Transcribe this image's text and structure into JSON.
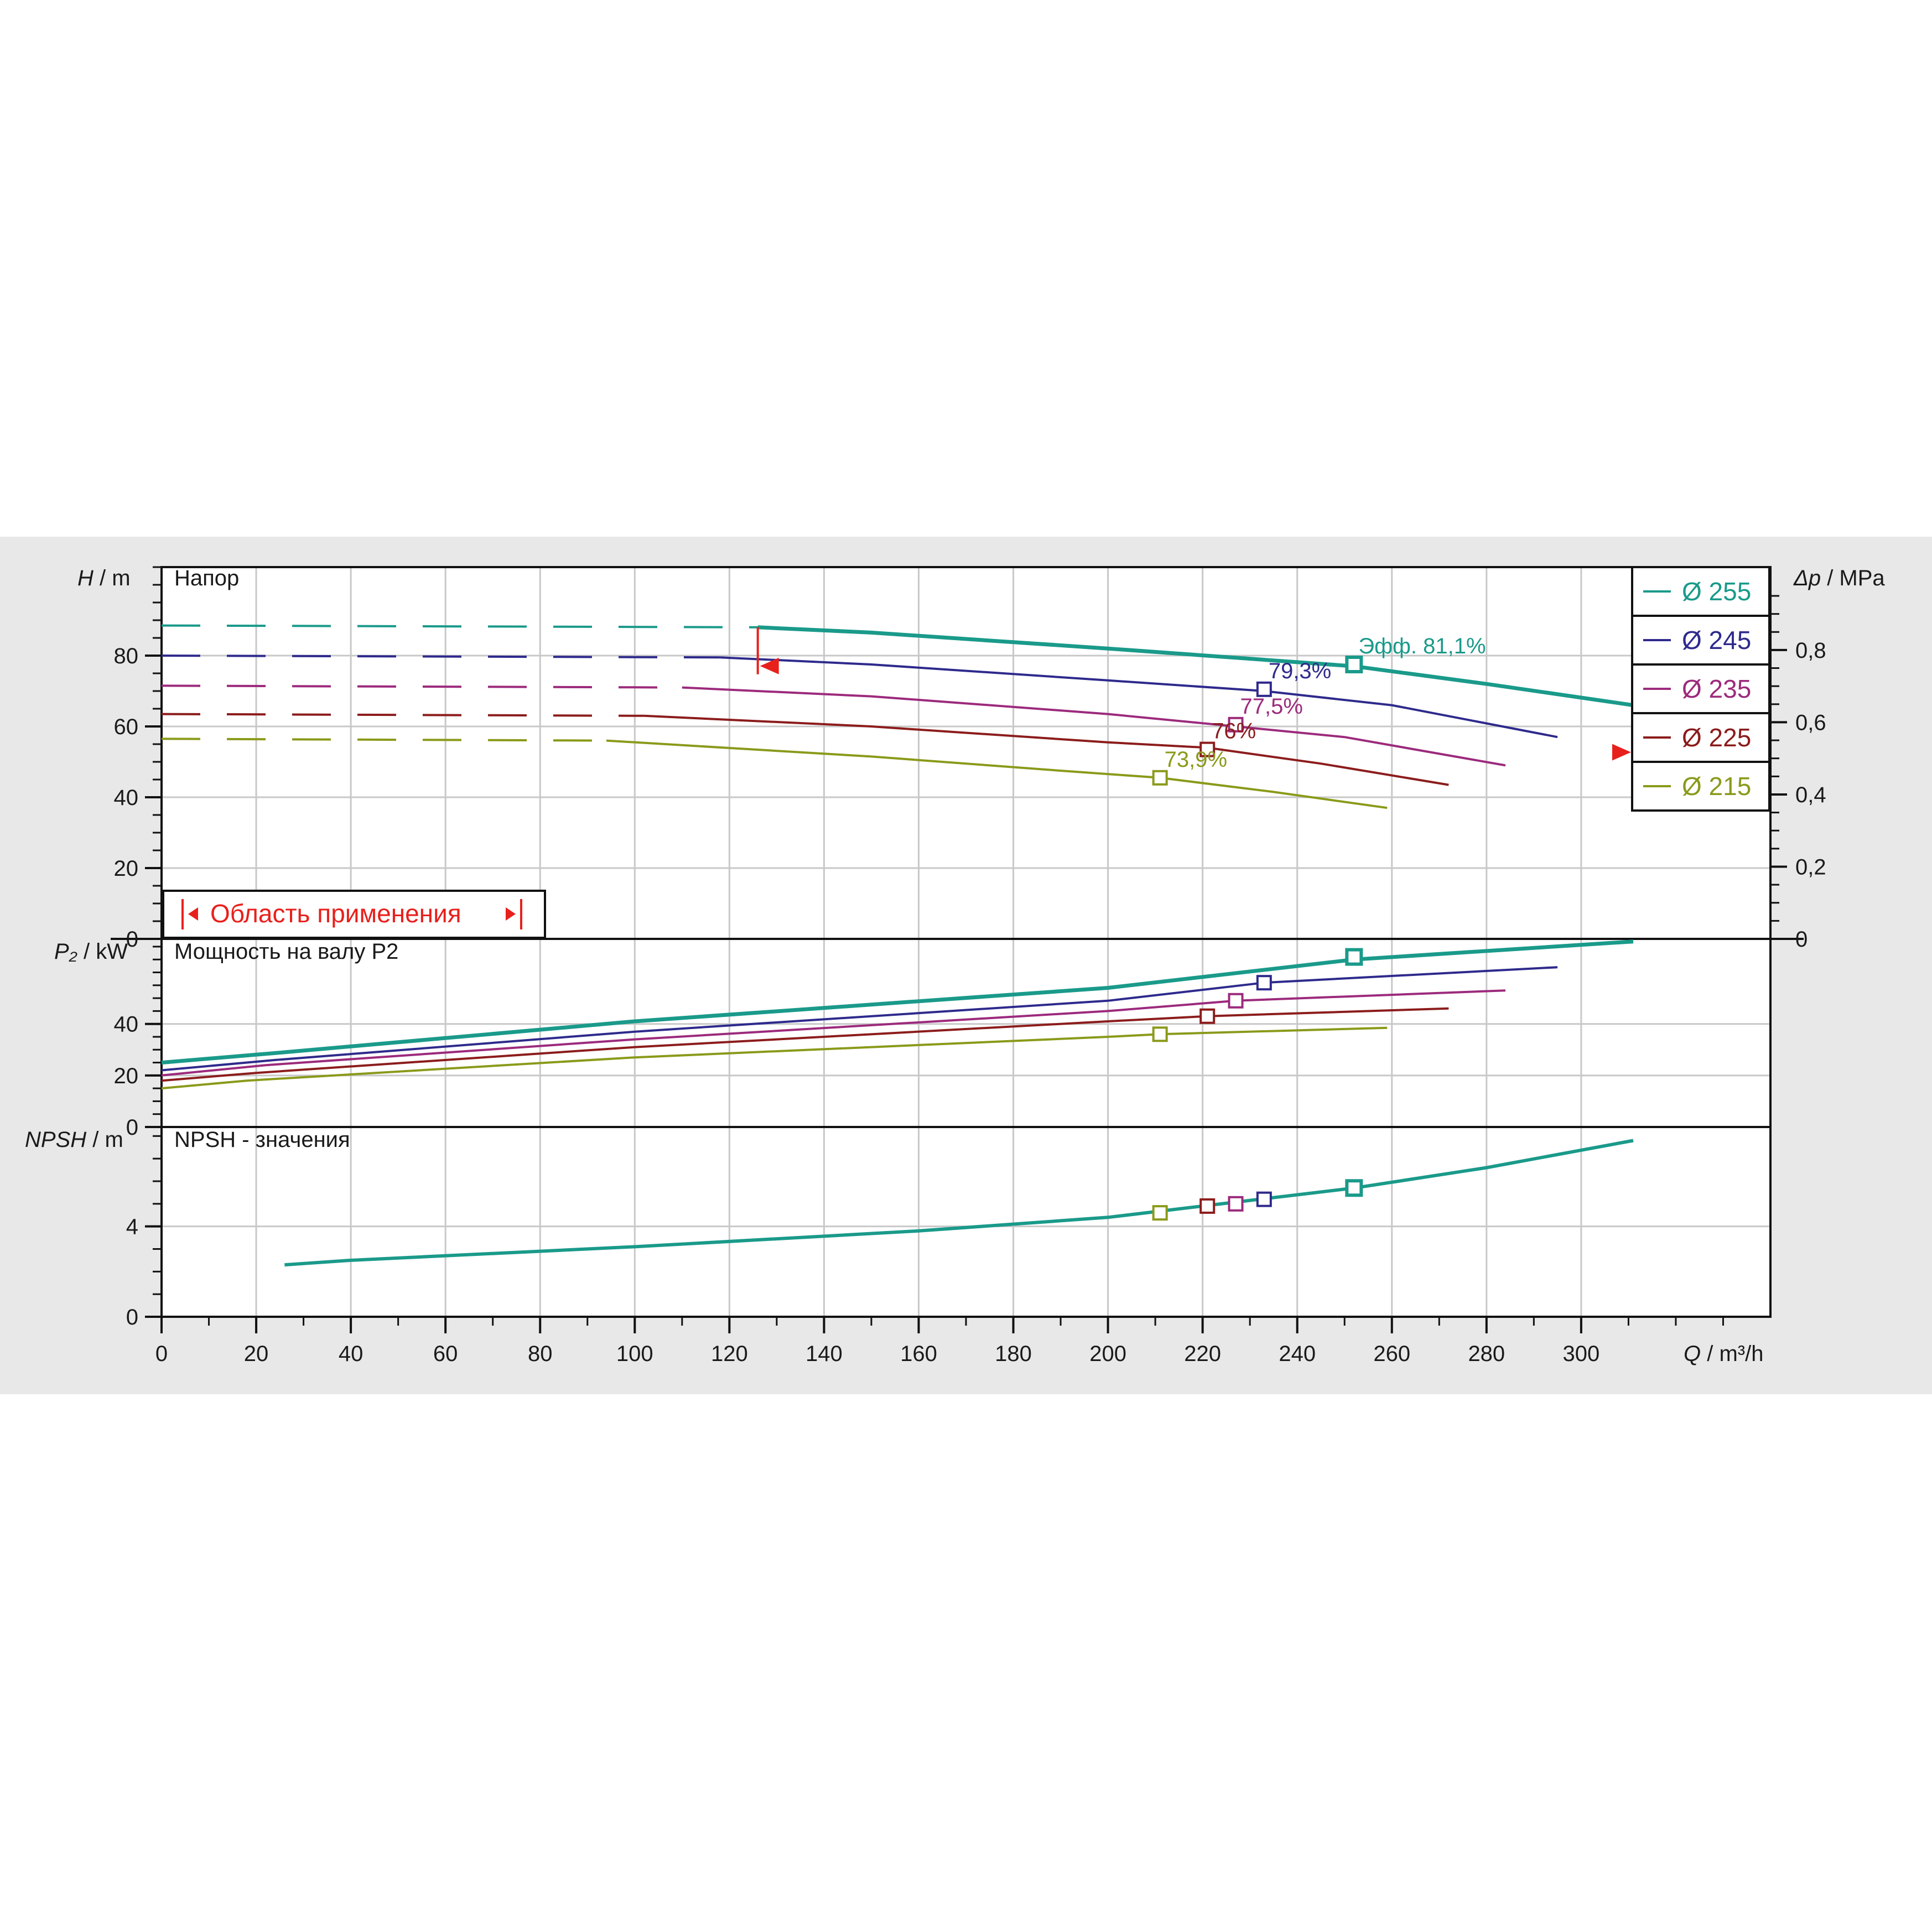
{
  "colors": {
    "d255": "#1a9a8a",
    "d245": "#2e2a8c",
    "d235": "#9c2a7c",
    "d225": "#8c1c1c",
    "d215": "#8a9a1a",
    "range": "#e8201c",
    "grid": "#c8c8c8",
    "axis": "#111111"
  },
  "head_panel": {
    "ylabel_var": "H",
    "ylabel_unit": " / m",
    "title": "Напор",
    "right_label_var": "Δp",
    "right_label_unit": " / MPa",
    "range_label": "Область применения"
  },
  "power_panel": {
    "ylabel_var": "P₂",
    "ylabel_unit": " / kW",
    "title": "Мощность на валу P2"
  },
  "npsh_panel": {
    "ylabel_var": "NPSH",
    "ylabel_unit": " / m",
    "title": "NPSH - значения"
  },
  "x_axis": {
    "label_var": "Q",
    "label_unit": " / m³/h",
    "ticks": [
      "0",
      "20",
      "40",
      "60",
      "80",
      "100",
      "120",
      "140",
      "160",
      "180",
      "200",
      "220",
      "240",
      "260",
      "280",
      "300"
    ]
  },
  "chart_data": [
    {
      "type": "line",
      "title": "Напор",
      "xlabel": "Q / m³/h",
      "ylabel": "H / m",
      "y2label": "Δp / MPa",
      "xlim": [
        0,
        340
      ],
      "ylim": [
        0,
        105
      ],
      "y_ticks": [
        "0",
        "20",
        "40",
        "60",
        "80"
      ],
      "y2_ticks": [
        "0",
        "0,2",
        "0,4",
        "0,6",
        "0,8"
      ],
      "legend": [
        "Ø 255",
        "Ø 245",
        "Ø 235",
        "Ø 225",
        "Ø 215"
      ],
      "legend_placement": "top-right",
      "series": [
        {
          "name": "Ø 255",
          "dashed_until": 126,
          "x": [
            0,
            126,
            150,
            200,
            252,
            280,
            311
          ],
          "y": [
            88.5,
            88,
            86.5,
            82,
            77,
            72,
            66
          ]
        },
        {
          "name": "Ø 245",
          "dashed_until": 118,
          "x": [
            0,
            118,
            150,
            200,
            233,
            260,
            295
          ],
          "y": [
            80,
            79.5,
            77.5,
            73,
            70,
            66,
            57
          ]
        },
        {
          "name": "Ø 235",
          "dashed_until": 110,
          "x": [
            0,
            110,
            150,
            200,
            227,
            250,
            284
          ],
          "y": [
            71.5,
            71,
            68.5,
            63.5,
            60,
            57,
            49
          ]
        },
        {
          "name": "Ø 225",
          "dashed_until": 102,
          "x": [
            0,
            102,
            150,
            200,
            221,
            245,
            272
          ],
          "y": [
            63.5,
            63,
            60,
            55.5,
            54,
            49.5,
            43.5
          ]
        },
        {
          "name": "Ø 215",
          "dashed_until": 94,
          "x": [
            0,
            94,
            150,
            190,
            211,
            235,
            259
          ],
          "y": [
            56.5,
            56,
            51.5,
            47.5,
            45.5,
            41.5,
            37
          ]
        }
      ],
      "bep_points": [
        {
          "series": "Ø 255",
          "x": 252,
          "y": 77.5,
          "label": "Эфф.  81,1%"
        },
        {
          "series": "Ø 245",
          "x": 233,
          "y": 70.5,
          "label": "79,3%"
        },
        {
          "series": "Ø 235",
          "x": 227,
          "y": 60.5,
          "label": "77,5%"
        },
        {
          "series": "Ø 225",
          "x": 221,
          "y": 53.5,
          "label": "76%"
        },
        {
          "series": "Ø 215",
          "x": 211,
          "y": 45.5,
          "label": "73,9%"
        }
      ],
      "application_range": {
        "q_min": 126,
        "q_max": 311
      }
    },
    {
      "type": "line",
      "title": "Мощность на валу P2",
      "xlabel": "Q / m³/h",
      "ylabel": "P₂ / kW",
      "xlim": [
        0,
        340
      ],
      "ylim": [
        0,
        73
      ],
      "y_ticks": [
        "0",
        "20",
        "40"
      ],
      "series": [
        {
          "name": "Ø 255",
          "x": [
            0,
            26,
            100,
            200,
            252,
            311
          ],
          "y": [
            25,
            29,
            41,
            54,
            65,
            72
          ]
        },
        {
          "name": "Ø 245",
          "x": [
            0,
            24,
            100,
            200,
            233,
            295
          ],
          "y": [
            22,
            26,
            37,
            49,
            56,
            62
          ]
        },
        {
          "name": "Ø 235",
          "x": [
            0,
            22,
            100,
            200,
            227,
            284
          ],
          "y": [
            20,
            24,
            34,
            45,
            49,
            53
          ]
        },
        {
          "name": "Ø 225",
          "x": [
            0,
            20,
            100,
            200,
            221,
            272
          ],
          "y": [
            18,
            21,
            31,
            41,
            43,
            46
          ]
        },
        {
          "name": "Ø 215",
          "x": [
            0,
            18,
            100,
            200,
            211,
            259
          ],
          "y": [
            15,
            18,
            27,
            35,
            36,
            38.5
          ]
        }
      ],
      "bep_points": [
        {
          "series": "Ø 255",
          "x": 252,
          "y": 66
        },
        {
          "series": "Ø 245",
          "x": 233,
          "y": 56
        },
        {
          "series": "Ø 235",
          "x": 227,
          "y": 49
        },
        {
          "series": "Ø 225",
          "x": 221,
          "y": 43
        },
        {
          "series": "Ø 215",
          "x": 211,
          "y": 36
        }
      ]
    },
    {
      "type": "line",
      "title": "NPSH - значения",
      "xlabel": "Q / m³/h",
      "ylabel": "NPSH / m",
      "xlim": [
        0,
        340
      ],
      "ylim": [
        0,
        8.4
      ],
      "y_ticks": [
        "0",
        "4"
      ],
      "series": [
        {
          "name": "Ø 255",
          "x": [
            26,
            40,
            100,
            160,
            200,
            252,
            280,
            311
          ],
          "y": [
            2.3,
            2.5,
            3.1,
            3.8,
            4.4,
            5.7,
            6.6,
            7.8
          ]
        }
      ],
      "bep_points": [
        {
          "series": "Ø 215",
          "x": 211,
          "y": 4.6
        },
        {
          "series": "Ø 225",
          "x": 221,
          "y": 4.9
        },
        {
          "series": "Ø 235",
          "x": 227,
          "y": 5.0
        },
        {
          "series": "Ø 245",
          "x": 233,
          "y": 5.2
        },
        {
          "series": "Ø 255",
          "x": 252,
          "y": 5.7
        }
      ]
    }
  ]
}
